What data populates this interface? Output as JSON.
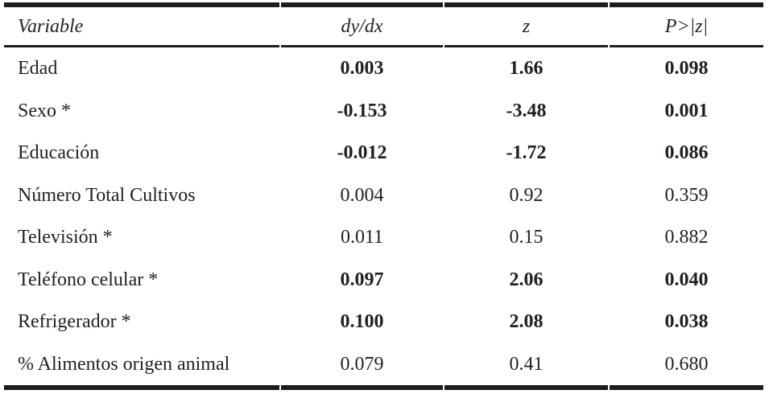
{
  "table": {
    "header": {
      "variable": "Variable",
      "dydx": "dy/dx",
      "z": "z",
      "p": "P>|z|"
    },
    "rows": [
      {
        "variable": "Edad",
        "dydx": "0.003",
        "z": "1.66",
        "p": "0.098",
        "significant": true
      },
      {
        "variable": "Sexo *",
        "dydx": "-0.153",
        "z": "-3.48",
        "p": "0.001",
        "significant": true
      },
      {
        "variable": "Educación",
        "dydx": "-0.012",
        "z": "-1.72",
        "p": "0.086",
        "significant": true
      },
      {
        "variable": "Número Total Cultivos",
        "dydx": "0.004",
        "z": "0.92",
        "p": "0.359",
        "significant": false
      },
      {
        "variable": "Televisión *",
        "dydx": "0.011",
        "z": "0.15",
        "p": "0.882",
        "significant": false
      },
      {
        "variable": "Teléfono celular *",
        "dydx": "0.097",
        "z": "2.06",
        "p": "0.040",
        "significant": true
      },
      {
        "variable": "Refrigerador *",
        "dydx": "0.100",
        "z": "2.08",
        "p": "0.038",
        "significant": true
      },
      {
        "variable": "% Alimentos origen animal",
        "dydx": "0.079",
        "z": "0.41",
        "p": "0.680",
        "significant": false
      }
    ]
  },
  "colors": {
    "text": "#231f20",
    "rule": "#1d1d1b",
    "background": "#ffffff"
  }
}
